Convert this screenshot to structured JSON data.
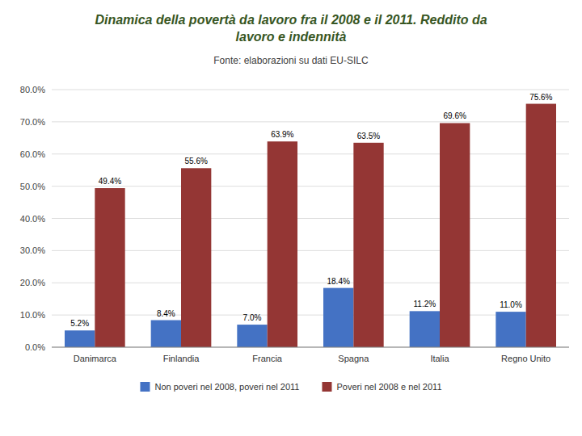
{
  "chart_data": {
    "type": "bar",
    "title": "Dinamica della povertà da lavoro fra il 2008 e il 2011. Reddito da\nlavoro e indennità",
    "subtitle": "Fonte: elaborazioni su dati EU-SILC",
    "categories": [
      "Danimarca",
      "Finlandia",
      "Francia",
      "Spagna",
      "Italia",
      "Regno Unito"
    ],
    "series": [
      {
        "name": "Non poveri nel 2008, poveri nel 2011",
        "color": "#4472C4",
        "values": [
          5.2,
          8.4,
          7.0,
          18.4,
          11.2,
          11.0
        ],
        "value_labels": [
          "5.2%",
          "8.4%",
          "7.0%",
          "18.4%",
          "11.2%",
          "11.0%"
        ]
      },
      {
        "name": "Poveri nel 2008 e nel 2011",
        "color": "#943634",
        "values": [
          49.4,
          55.6,
          63.9,
          63.5,
          69.6,
          75.6
        ],
        "value_labels": [
          "49.4%",
          "55.6%",
          "63.9%",
          "63.5%",
          "69.6%",
          "75.6%"
        ]
      }
    ],
    "ylim": [
      0,
      80
    ],
    "yticks": [
      {
        "value": 0,
        "label": "0.0%"
      },
      {
        "value": 10,
        "label": "10.0%"
      },
      {
        "value": 20,
        "label": "20.0%"
      },
      {
        "value": 30,
        "label": "30.0%"
      },
      {
        "value": 40,
        "label": "40.0%"
      },
      {
        "value": 50,
        "label": "50.0%"
      },
      {
        "value": 60,
        "label": "60.0%"
      },
      {
        "value": 70,
        "label": "70.0%"
      },
      {
        "value": 80,
        "label": "80.0%"
      }
    ],
    "grid": true,
    "legend": "bottom",
    "data_labels": true
  }
}
